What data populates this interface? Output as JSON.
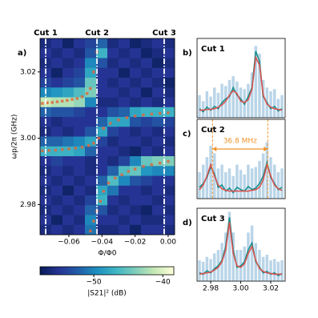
{
  "chart_data": [
    {
      "type": "heatmap",
      "panel": "a)",
      "xlabel": "Φ/Φ0",
      "ylabel": "ωp/2π (GHz)",
      "xlim": [
        -0.0774,
        0.0039
      ],
      "ylim": [
        2.9709,
        3.0301
      ],
      "xticks": [
        {
          "value": -0.06,
          "label": "−0.06"
        },
        {
          "value": -0.04,
          "label": "−0.04"
        },
        {
          "value": -0.02,
          "label": "−0.02"
        },
        {
          "value": 0,
          "label": "0.00"
        }
      ],
      "yticks": [
        2.98,
        {
          "value": 3,
          "label": "3.00"
        },
        3.02
      ],
      "colormap": [
        "#081d58",
        "#253494",
        "#225ea8",
        "#1d91c0",
        "#41b6c4",
        "#7fcdbb",
        "#c7e9b4",
        "#ffffd9"
      ],
      "clim": [
        -57.8,
        -38.4
      ],
      "colorbar_label": "|S21|² (dB)",
      "colorbar_ticks": [
        {
          "value": -50,
          "label": "−50"
        },
        {
          "value": -40,
          "label": "−40"
        }
      ],
      "z": [
        [
          -56,
          -55,
          -57,
          -55,
          -54,
          -52,
          -56,
          -55,
          -57,
          -56,
          -55,
          -56
        ],
        [
          -55,
          -56,
          -55,
          -56,
          -53,
          -47,
          -55,
          -56,
          -55,
          -57,
          -56,
          -55
        ],
        [
          -56,
          -55,
          -56,
          -55,
          -50,
          -53,
          -56,
          -55,
          -56,
          -55,
          -57,
          -56
        ],
        [
          -55,
          -57,
          -55,
          -54,
          -48,
          -55,
          -55,
          -57,
          -55,
          -56,
          -55,
          -55
        ],
        [
          -54,
          -55,
          -54,
          -53,
          -45,
          -55,
          -56,
          -55,
          -56,
          -55,
          -56,
          -57
        ],
        [
          -50,
          -49,
          -48,
          -46,
          -44,
          -55,
          -55,
          -56,
          -55,
          -57,
          -55,
          -56
        ],
        [
          -41,
          -42,
          -42,
          -43,
          -50,
          -56,
          -56,
          -55,
          -56,
          -55,
          -56,
          -55
        ],
        [
          -52,
          -53,
          -53,
          -54,
          -55,
          -55,
          -53,
          -52,
          -48,
          -47,
          -47,
          -47
        ],
        [
          -55,
          -56,
          -55,
          -55,
          -55,
          -52,
          -48,
          -48,
          -53,
          -54,
          -53,
          -54
        ],
        [
          -56,
          -55,
          -56,
          -55,
          -53,
          -48,
          -54,
          -55,
          -56,
          -55,
          -56,
          -55
        ],
        [
          -52,
          -52,
          -51,
          -50,
          -48,
          -54,
          -56,
          -55,
          -55,
          -56,
          -55,
          -56
        ],
        [
          -47,
          -47,
          -47,
          -48,
          -52,
          -55,
          -55,
          -56,
          -57,
          -55,
          -56,
          -55
        ],
        [
          -55,
          -54,
          -55,
          -55,
          -56,
          -55,
          -56,
          -54,
          -50,
          -45,
          -44,
          -44
        ],
        [
          -56,
          -55,
          -56,
          -55,
          -56,
          -55,
          -52,
          -46,
          -45,
          -49,
          -50,
          -50
        ],
        [
          -55,
          -56,
          -55,
          -56,
          -55,
          -52,
          -46,
          -50,
          -53,
          -54,
          -55,
          -55
        ],
        [
          -56,
          -55,
          -57,
          -55,
          -56,
          -48,
          -51,
          -55,
          -55,
          -56,
          -55,
          -56
        ],
        [
          -55,
          -56,
          -55,
          -56,
          -54,
          -47,
          -55,
          -56,
          -55,
          -55,
          -56,
          -55
        ],
        [
          -56,
          -55,
          -56,
          -55,
          -52,
          -53,
          -56,
          -55,
          -56,
          -57,
          -55,
          -56
        ],
        [
          -55,
          -57,
          -55,
          -56,
          -50,
          -55,
          -55,
          -56,
          -55,
          -56,
          -56,
          -55
        ],
        [
          -56,
          -55,
          -56,
          -55,
          -51,
          -56,
          -56,
          -55,
          -57,
          -55,
          -55,
          -56
        ]
      ],
      "cuts": [
        {
          "label": "Cut 1",
          "x": -0.074
        },
        {
          "label": "Cut 2",
          "x": -0.043
        },
        {
          "label": "Cut 3",
          "x": -0.0024
        }
      ],
      "cut_color": "#ffffff",
      "point_color": "#e0663c",
      "points": [
        {
          "x": [
            -0.076,
            -0.073,
            -0.07,
            -0.067,
            -0.064,
            -0.061,
            -0.058,
            -0.055,
            -0.052,
            -0.049,
            -0.047,
            -0.045,
            -0.043
          ],
          "y": [
            3.0105,
            3.0107,
            3.0108,
            3.011,
            3.0112,
            3.0114,
            3.0117,
            3.012,
            3.0125,
            3.0135,
            3.015,
            3.02,
            3.026
          ]
        },
        {
          "x": [
            -0.076,
            -0.072,
            -0.068,
            -0.064,
            -0.06,
            -0.056,
            -0.052,
            -0.048,
            -0.045,
            -0.042,
            -0.039,
            -0.035,
            -0.03,
            -0.025,
            -0.02,
            -0.015,
            -0.01,
            -0.005,
            0
          ],
          "y": [
            2.9962,
            2.9963,
            2.9964,
            2.9966,
            2.9968,
            2.997,
            2.9973,
            2.9978,
            2.9985,
            3.0,
            3.003,
            3.0045,
            3.0055,
            3.0062,
            3.0067,
            3.007,
            3.0073,
            3.0075,
            3.0077
          ]
        },
        {
          "x": [
            -0.047,
            -0.045,
            -0.043,
            -0.041,
            -0.039,
            -0.036,
            -0.032,
            -0.028,
            -0.024,
            -0.02,
            -0.015,
            -0.01,
            -0.005,
            0
          ],
          "y": [
            2.972,
            2.975,
            2.978,
            2.981,
            2.984,
            2.9865,
            2.988,
            2.989,
            2.99,
            2.9907,
            2.9915,
            2.992,
            2.9925,
            2.993
          ]
        }
      ]
    },
    {
      "type": "line",
      "panel": "b)",
      "title": "Cut 1",
      "xlim": [
        2.9709,
        3.0296
      ],
      "ylim": [
        0,
        1.05
      ],
      "x": [
        2.9725,
        2.975,
        2.9775,
        2.98,
        2.9825,
        2.985,
        2.9875,
        2.99,
        2.9925,
        2.995,
        2.9975,
        3.0,
        3.0025,
        3.005,
        3.0075,
        3.01,
        3.0125,
        3.015,
        3.0175,
        3.02,
        3.0225,
        3.025,
        3.0275
      ],
      "series": [
        {
          "style": "bars",
          "color": "#a9cbe3",
          "values": [
            0.3,
            0.22,
            0.35,
            0.28,
            0.4,
            0.33,
            0.45,
            0.42,
            0.5,
            0.55,
            0.48,
            0.4,
            0.38,
            0.45,
            0.6,
            0.95,
            0.85,
            0.5,
            0.4,
            0.35,
            0.38,
            0.25,
            0.3
          ]
        },
        {
          "style": "line",
          "color": "#17918f",
          "values": [
            0.12,
            0.08,
            0.14,
            0.1,
            0.15,
            0.12,
            0.2,
            0.25,
            0.28,
            0.4,
            0.3,
            0.25,
            0.18,
            0.28,
            0.4,
            0.88,
            0.75,
            0.28,
            0.2,
            0.12,
            0.15,
            0.09,
            0.12
          ]
        },
        {
          "style": "line",
          "color": "#d9534f",
          "values": [
            0.1,
            0.1,
            0.11,
            0.11,
            0.12,
            0.14,
            0.17,
            0.22,
            0.3,
            0.36,
            0.32,
            0.22,
            0.2,
            0.24,
            0.38,
            0.8,
            0.7,
            0.3,
            0.18,
            0.14,
            0.12,
            0.11,
            0.1
          ]
        }
      ]
    },
    {
      "type": "line",
      "panel": "c)",
      "title": "Cut 2",
      "xlim": [
        2.9709,
        3.0296
      ],
      "ylim": [
        0,
        1.05
      ],
      "x": [
        2.9725,
        2.975,
        2.9775,
        2.98,
        2.9825,
        2.985,
        2.9875,
        2.99,
        2.9925,
        2.995,
        2.9975,
        3.0,
        3.0025,
        3.005,
        3.0075,
        3.01,
        3.0125,
        3.015,
        3.0175,
        3.02,
        3.0225,
        3.025,
        3.0275
      ],
      "series": [
        {
          "style": "bars",
          "color": "#a9cbe3",
          "values": [
            0.35,
            0.45,
            0.55,
            0.7,
            0.6,
            0.4,
            0.45,
            0.35,
            0.4,
            0.3,
            0.45,
            0.38,
            0.32,
            0.45,
            0.4,
            0.42,
            0.5,
            0.6,
            0.75,
            0.55,
            0.45,
            0.35,
            0.4
          ]
        },
        {
          "style": "line",
          "color": "#17918f",
          "values": [
            0.15,
            0.2,
            0.28,
            0.42,
            0.33,
            0.15,
            0.18,
            0.1,
            0.14,
            0.08,
            0.15,
            0.12,
            0.1,
            0.16,
            0.12,
            0.14,
            0.2,
            0.3,
            0.48,
            0.28,
            0.2,
            0.12,
            0.15
          ]
        },
        {
          "style": "line",
          "color": "#d9534f",
          "values": [
            0.12,
            0.18,
            0.3,
            0.45,
            0.3,
            0.18,
            0.13,
            0.11,
            0.1,
            0.1,
            0.1,
            0.1,
            0.1,
            0.1,
            0.11,
            0.12,
            0.15,
            0.25,
            0.45,
            0.3,
            0.18,
            0.13,
            0.11
          ]
        }
      ],
      "markers": [
        2.9812,
        3.018
      ],
      "marker_color": "#f0932b",
      "annotation": "36.8 MHz"
    },
    {
      "type": "line",
      "panel": "d)",
      "title": "Cut 3",
      "xlim": [
        2.9709,
        3.0296
      ],
      "ylim": [
        0,
        1.05
      ],
      "xticks": [
        2.98,
        {
          "value": 3,
          "label": "3.00"
        },
        3.02
      ],
      "x": [
        2.9725,
        2.975,
        2.9775,
        2.98,
        2.9825,
        2.985,
        2.9875,
        2.99,
        2.9925,
        2.995,
        2.9975,
        3.0,
        3.0025,
        3.005,
        3.0075,
        3.01,
        3.0125,
        3.015,
        3.0175,
        3.02,
        3.0225,
        3.025,
        3.0275
      ],
      "series": [
        {
          "style": "bars",
          "color": "#a9cbe3",
          "values": [
            0.3,
            0.28,
            0.35,
            0.32,
            0.4,
            0.45,
            0.55,
            0.7,
            1.0,
            0.7,
            0.45,
            0.45,
            0.5,
            0.7,
            0.8,
            0.55,
            0.45,
            0.35,
            0.38,
            0.3,
            0.32,
            0.28,
            0.3
          ]
        },
        {
          "style": "line",
          "color": "#17918f",
          "values": [
            0.12,
            0.1,
            0.15,
            0.12,
            0.18,
            0.22,
            0.3,
            0.5,
            0.92,
            0.45,
            0.2,
            0.22,
            0.28,
            0.45,
            0.55,
            0.28,
            0.2,
            0.12,
            0.14,
            0.1,
            0.12,
            0.08,
            0.11
          ]
        },
        {
          "style": "line",
          "color": "#d9534f",
          "values": [
            0.1,
            0.11,
            0.12,
            0.13,
            0.16,
            0.2,
            0.28,
            0.45,
            0.85,
            0.4,
            0.22,
            0.2,
            0.25,
            0.4,
            0.5,
            0.3,
            0.18,
            0.14,
            0.12,
            0.11,
            0.1,
            0.1,
            0.1
          ]
        }
      ]
    }
  ]
}
